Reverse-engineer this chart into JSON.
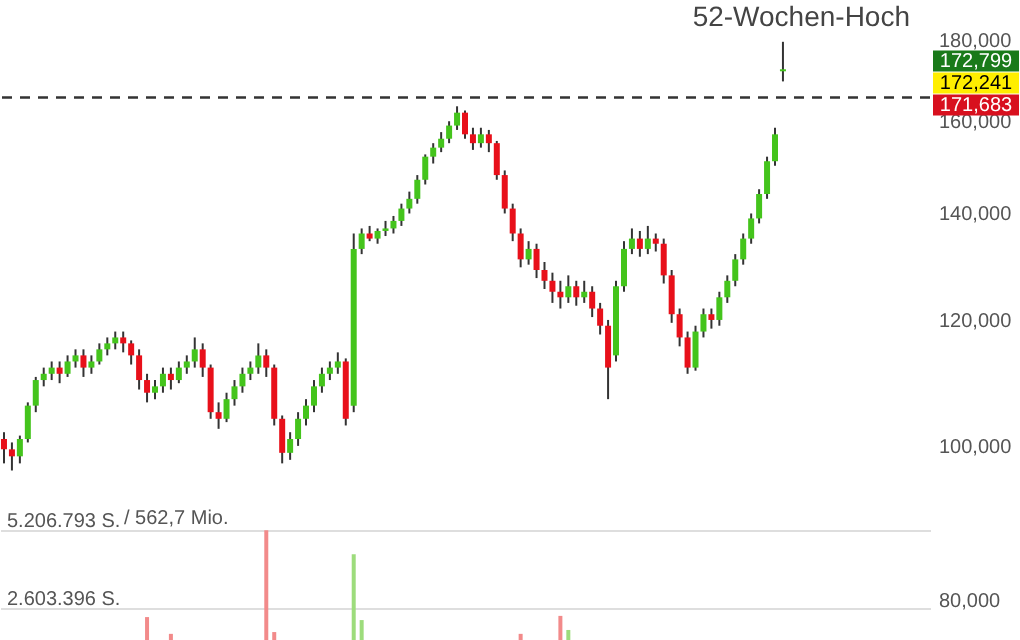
{
  "chart_data": {
    "type": "candlestick",
    "log": true,
    "grid": "y2",
    "categories": [
      null,
      null,
      null,
      null,
      null,
      null,
      null,
      null,
      null,
      null,
      null,
      null,
      null,
      null,
      null,
      null,
      null,
      null,
      null,
      null,
      null,
      null,
      null,
      null,
      null,
      null,
      null,
      null,
      null,
      null,
      null,
      null,
      null,
      null,
      null,
      null,
      null,
      null,
      null,
      null,
      null,
      null,
      null,
      null,
      null,
      null,
      null,
      null,
      null,
      null,
      null,
      null,
      null,
      null,
      null,
      null,
      null,
      null,
      null,
      null,
      null,
      null,
      null,
      null,
      null,
      null,
      null,
      null,
      null,
      null,
      null,
      null,
      null,
      null,
      null,
      null,
      null,
      null,
      null,
      null,
      null,
      null,
      null,
      null,
      null,
      null,
      null,
      null,
      null,
      null,
      null,
      null,
      null,
      null,
      null,
      null,
      null,
      null,
      null,
      null,
      null,
      null,
      null,
      null,
      null,
      null,
      null,
      null,
      null,
      null,
      null,
      null,
      null,
      null,
      null,
      null,
      null
    ],
    "ohlc": [
      [
        101000,
        102000,
        97500,
        99500
      ],
      [
        99500,
        100500,
        96500,
        98500
      ],
      [
        98500,
        101500,
        97500,
        101000
      ],
      [
        101000,
        106500,
        100500,
        106000
      ],
      [
        106000,
        110500,
        105000,
        110000
      ],
      [
        110000,
        112000,
        109000,
        111000
      ],
      [
        111000,
        113000,
        110000,
        112000
      ],
      [
        112000,
        113000,
        109500,
        111000
      ],
      [
        111000,
        114000,
        110500,
        113000
      ],
      [
        113000,
        115000,
        112000,
        114000
      ],
      [
        114000,
        115000,
        110500,
        112000
      ],
      [
        112000,
        114000,
        111000,
        113000
      ],
      [
        113000,
        116000,
        112500,
        115000
      ],
      [
        115000,
        117000,
        114000,
        116000
      ],
      [
        116000,
        118000,
        115000,
        117000
      ],
      [
        117000,
        118000,
        114500,
        116000
      ],
      [
        116000,
        116500,
        112500,
        114000
      ],
      [
        114000,
        115000,
        108500,
        110000
      ],
      [
        110000,
        111000,
        106500,
        108000
      ],
      [
        108000,
        110000,
        107000,
        109000
      ],
      [
        109000,
        112000,
        108000,
        111000
      ],
      [
        111000,
        112000,
        108500,
        110000
      ],
      [
        110000,
        113000,
        109500,
        112000
      ],
      [
        112000,
        114000,
        111000,
        113000
      ],
      [
        113000,
        117000,
        112000,
        115000
      ],
      [
        115000,
        116000,
        110500,
        112000
      ],
      [
        112000,
        112500,
        104000,
        105000
      ],
      [
        105000,
        106500,
        102500,
        104000
      ],
      [
        104000,
        108000,
        103500,
        107000
      ],
      [
        107000,
        110000,
        106000,
        109000
      ],
      [
        109000,
        112000,
        108000,
        111000
      ],
      [
        111000,
        113000,
        110000,
        112000
      ],
      [
        112000,
        116000,
        111000,
        114000
      ],
      [
        114000,
        115000,
        110500,
        112000
      ],
      [
        112000,
        112500,
        103000,
        104000
      ],
      [
        104000,
        104500,
        97500,
        99000
      ],
      [
        99000,
        102000,
        98000,
        101000
      ],
      [
        101000,
        105000,
        100000,
        104000
      ],
      [
        104000,
        107000,
        103000,
        106000
      ],
      [
        106000,
        110000,
        105000,
        109000
      ],
      [
        109000,
        112000,
        108000,
        111000
      ],
      [
        111000,
        113000,
        110000,
        112000
      ],
      [
        112000,
        114500,
        111000,
        113000
      ],
      [
        113000,
        113500,
        103000,
        104000
      ],
      [
        106000,
        136000,
        105000,
        133000
      ],
      [
        133000,
        137000,
        132000,
        136000
      ],
      [
        136000,
        137500,
        134500,
        135000
      ],
      [
        135000,
        137000,
        134000,
        136500
      ],
      [
        136500,
        138500,
        135500,
        137000
      ],
      [
        137000,
        139500,
        136000,
        138500
      ],
      [
        138500,
        142000,
        137500,
        141000
      ],
      [
        141000,
        144500,
        140000,
        143000
      ],
      [
        143000,
        148000,
        142000,
        147000
      ],
      [
        147000,
        152500,
        146000,
        152000
      ],
      [
        152000,
        155000,
        150500,
        154000
      ],
      [
        154000,
        157500,
        153000,
        156000
      ],
      [
        156000,
        160000,
        155000,
        159000
      ],
      [
        159000,
        163500,
        158000,
        162000
      ],
      [
        162000,
        162500,
        156000,
        157000
      ],
      [
        157000,
        158500,
        153500,
        155000
      ],
      [
        155000,
        158500,
        154000,
        157000
      ],
      [
        157000,
        158000,
        153000,
        155000
      ],
      [
        155000,
        155500,
        147000,
        148000
      ],
      [
        148000,
        149000,
        140000,
        141000
      ],
      [
        141000,
        142000,
        134500,
        136000
      ],
      [
        136000,
        137000,
        129500,
        131000
      ],
      [
        131000,
        134500,
        130000,
        133000
      ],
      [
        133000,
        134000,
        127500,
        129000
      ],
      [
        129000,
        130500,
        125500,
        127000
      ],
      [
        127000,
        128500,
        123000,
        125000
      ],
      [
        125000,
        127000,
        122000,
        124000
      ],
      [
        124000,
        128000,
        123000,
        126000
      ],
      [
        126000,
        127000,
        122500,
        124000
      ],
      [
        124000,
        127000,
        123000,
        125000
      ],
      [
        125000,
        126000,
        120500,
        122000
      ],
      [
        122000,
        123000,
        117500,
        119000
      ],
      [
        119000,
        120000,
        107000,
        112000
      ],
      [
        114000,
        127000,
        113000,
        126000
      ],
      [
        126000,
        134500,
        125000,
        133000
      ],
      [
        133000,
        137000,
        132000,
        135000
      ],
      [
        135000,
        136500,
        131500,
        133000
      ],
      [
        133000,
        137500,
        132000,
        135000
      ],
      [
        135000,
        136000,
        132500,
        134000
      ],
      [
        134000,
        135000,
        126500,
        128000
      ],
      [
        128000,
        129000,
        119500,
        121000
      ],
      [
        121000,
        122000,
        115500,
        117000
      ],
      [
        117000,
        118000,
        111000,
        112000
      ],
      [
        112000,
        119000,
        111500,
        118000
      ],
      [
        118000,
        122000,
        117000,
        121000
      ],
      [
        121000,
        122000,
        118500,
        120000
      ],
      [
        120000,
        125000,
        119000,
        124000
      ],
      [
        124000,
        128000,
        123000,
        127000
      ],
      [
        127000,
        132000,
        126000,
        131000
      ],
      [
        131000,
        136000,
        130000,
        135000
      ],
      [
        135000,
        140000,
        134000,
        139000
      ],
      [
        139000,
        145000,
        138000,
        144000
      ],
      [
        144000,
        152000,
        143000,
        151000
      ],
      [
        151000,
        158500,
        150000,
        157000
      ],
      [
        172000,
        179500,
        169500,
        172500
      ],
      null,
      null,
      null,
      null,
      null,
      null,
      null,
      null,
      null,
      null,
      null,
      null,
      null,
      null,
      null,
      null,
      null,
      null
    ],
    "colors": [
      "#e8101a",
      "#e8101a",
      "#44c41c",
      "#44c41c",
      "#44c41c",
      "#44c41c",
      "#44c41c",
      "#e8101a",
      "#44c41c",
      "#44c41c",
      "#e8101a",
      "#44c41c",
      "#44c41c",
      "#44c41c",
      "#44c41c",
      "#e8101a",
      "#e8101a",
      "#e8101a",
      "#e8101a",
      "#44c41c",
      "#44c41c",
      "#e8101a",
      "#44c41c",
      "#44c41c",
      "#44c41c",
      "#e8101a",
      "#e8101a",
      "#e8101a",
      "#44c41c",
      "#44c41c",
      "#44c41c",
      "#44c41c",
      "#44c41c",
      "#e8101a",
      "#e8101a",
      "#e8101a",
      "#44c41c",
      "#44c41c",
      "#44c41c",
      "#44c41c",
      "#44c41c",
      "#44c41c",
      "#44c41c",
      "#e8101a",
      "#44c41c",
      "#44c41c",
      "#e8101a",
      "#44c41c",
      "#44c41c",
      "#44c41c",
      "#44c41c",
      "#44c41c",
      "#44c41c",
      "#44c41c",
      "#44c41c",
      "#44c41c",
      "#44c41c",
      "#44c41c",
      "#e8101a",
      "#e8101a",
      "#44c41c",
      "#e8101a",
      "#e8101a",
      "#e8101a",
      "#e8101a",
      "#e8101a",
      "#44c41c",
      "#e8101a",
      "#e8101a",
      "#e8101a",
      "#e8101a",
      "#44c41c",
      "#e8101a",
      "#44c41c",
      "#e8101a",
      "#e8101a",
      "#e8101a",
      "#44c41c",
      "#44c41c",
      "#44c41c",
      "#e8101a",
      "#44c41c",
      "#e8101a",
      "#e8101a",
      "#e8101a",
      "#e8101a",
      "#e8101a",
      "#44c41c",
      "#44c41c",
      "#e8101a",
      "#44c41c",
      "#44c41c",
      "#44c41c",
      "#44c41c",
      "#44c41c",
      "#44c41c",
      "#44c41c",
      "#44c41c",
      "#44c41c",
      null,
      null,
      null,
      null,
      null,
      null,
      null,
      null,
      null,
      null,
      null,
      null,
      null,
      null,
      null,
      null,
      null,
      null
    ],
    "ylim": [
      75500,
      190700
    ],
    "yticks": [
      {
        "value": 80000,
        "label": "80,000"
      },
      {
        "value": 100000,
        "label": "100,000"
      },
      {
        "value": 120000,
        "label": "120,000"
      },
      {
        "value": 140000,
        "label": "140,000"
      },
      {
        "value": 160000,
        "label": "160,000"
      },
      {
        "value": 180000,
        "label": "180,000"
      }
    ],
    "y2lim": [
      1535000,
      22896000
    ],
    "y2ticks": [
      {
        "value": 2603396,
        "label": "2.603.396 S."
      },
      {
        "value": 5206793,
        "label": "5.206.793 S."
      }
    ],
    "series": [
      {
        "type": "bar",
        "axis": "y2",
        "colors": [
          null,
          null,
          null,
          null,
          null,
          null,
          null,
          null,
          null,
          null,
          null,
          null,
          null,
          null,
          null,
          null,
          null,
          null,
          "#f28a8a",
          null,
          null,
          "#f28a8a",
          null,
          null,
          null,
          null,
          null,
          null,
          null,
          null,
          null,
          null,
          null,
          "#f28a8a",
          "#f28a8a",
          null,
          null,
          null,
          null,
          null,
          null,
          null,
          null,
          null,
          "#9ddc7c",
          "#9ddc7c",
          null,
          null,
          null,
          null,
          null,
          null,
          null,
          null,
          null,
          null,
          null,
          null,
          null,
          null,
          null,
          null,
          null,
          null,
          null,
          "#f28a8a",
          null,
          null,
          null,
          null,
          "#f28a8a",
          "#9ddc7c",
          null,
          null,
          null,
          null,
          null,
          null,
          null,
          null,
          null,
          null,
          null,
          null,
          null,
          null,
          null,
          null,
          null,
          null,
          null,
          null,
          null,
          null,
          null,
          null,
          null,
          null,
          null,
          null,
          null,
          null,
          null,
          null,
          null,
          null,
          null,
          null,
          null,
          null,
          null,
          null,
          null,
          null,
          null,
          null,
          null
        ],
        "values": [
          null,
          null,
          null,
          null,
          null,
          null,
          null,
          null,
          null,
          null,
          null,
          null,
          null,
          null,
          null,
          null,
          null,
          null,
          2300000,
          null,
          null,
          1740000,
          null,
          null,
          null,
          null,
          null,
          null,
          null,
          null,
          null,
          null,
          null,
          5200000,
          1800000,
          null,
          null,
          null,
          null,
          null,
          null,
          null,
          null,
          null,
          4400000,
          2200000,
          null,
          null,
          null,
          null,
          null,
          null,
          null,
          null,
          null,
          null,
          null,
          null,
          null,
          null,
          null,
          null,
          null,
          null,
          null,
          1740000,
          null,
          null,
          null,
          null,
          2340000,
          1870000,
          null,
          null,
          null,
          null,
          null,
          null,
          null,
          null,
          null,
          null,
          null,
          null,
          null,
          null,
          null,
          null,
          null,
          null,
          null,
          null,
          null,
          null,
          null,
          null,
          null,
          null,
          null,
          null,
          null,
          null,
          null,
          null,
          null,
          null,
          null,
          null,
          null,
          null,
          null,
          null,
          null,
          null,
          null,
          null,
          null
        ]
      }
    ],
    "ref_lines": [
      {
        "axis": "y",
        "value": 165600,
        "label": "52-Wochen-Hoch",
        "line_style": "dashed",
        "color": "#333333"
      }
    ],
    "annotations": [
      "172,799",
      "172,241",
      "171,683",
      "/ 562,7 Mio."
    ]
  }
}
